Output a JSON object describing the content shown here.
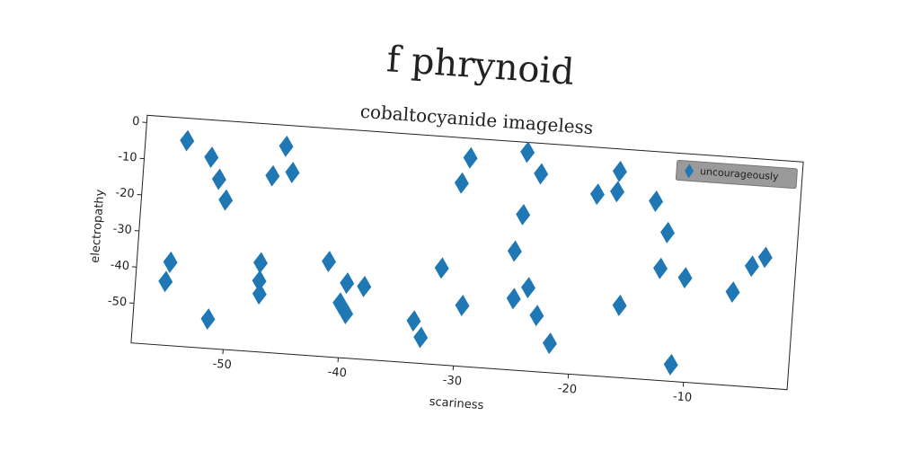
{
  "chart_data": {
    "type": "scatter",
    "title": "f phrynoid",
    "subtitle": "cobaltocyanide imageless",
    "xlabel": "scariness",
    "ylabel": "electropathy",
    "xlim": [
      -58,
      -1
    ],
    "ylim": [
      -61,
      2
    ],
    "xticks": [
      -50,
      -40,
      -30,
      -20,
      -10
    ],
    "yticks": [
      0,
      -10,
      -20,
      -30,
      -40,
      -50
    ],
    "legend": "upper right",
    "series": [
      {
        "name": "uncourageously",
        "color": "#1f77b4",
        "x": [
          -54.4,
          -52.2,
          -51.4,
          -50.7,
          -55.1,
          -55.4,
          -51.5,
          -45.8,
          -46.8,
          -45.1,
          -47.3,
          -47.3,
          -47.2,
          -41.4,
          -40.2,
          -39.6,
          -39.7,
          -38.2,
          -33.7,
          -33.0,
          -31.6,
          -30.4,
          -29.8,
          -29.6,
          -24.9,
          -23.6,
          -24.9,
          -25.4,
          -24.0,
          -25.2,
          -23.1,
          -21.8,
          -18.6,
          -16.9,
          -16.8,
          -16.0,
          -13.5,
          -12.3,
          -12.7,
          -10.5,
          -11.2,
          -6.3,
          -4.8,
          -3.7
        ],
        "values": [
          -4.2,
          -8.3,
          -14.2,
          -19.8,
          -38.0,
          -43.4,
          -52.9,
          -3.8,
          -12.2,
          -10.9,
          -36.4,
          -41.4,
          -45.0,
          -34.7,
          -45.9,
          -48.7,
          -40.3,
          -40.9,
          -49.4,
          -53.8,
          -34.3,
          -10.5,
          -3.4,
          -44.2,
          -0.7,
          -6.4,
          -18.0,
          -28.2,
          -38.0,
          -41.3,
          -45.5,
          -52.9,
          -10.9,
          -9.8,
          -4.2,
          -41.1,
          -11.7,
          -20.1,
          -30.1,
          -32.2,
          -56.4,
          -35.2,
          -27.7,
          -25.0
        ]
      }
    ]
  }
}
